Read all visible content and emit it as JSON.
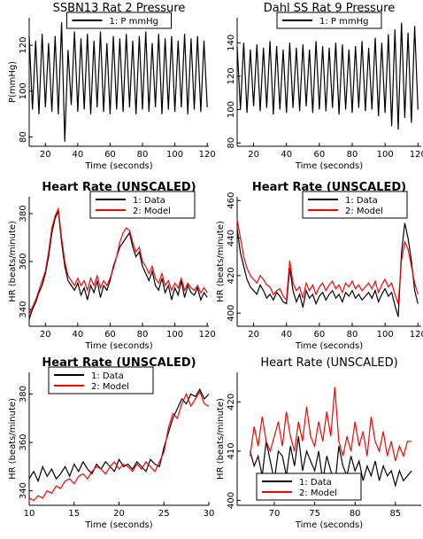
{
  "chart_data": [
    {
      "type": "line",
      "title": "SSBN13 Rat 2 Pressure",
      "xlabel": "Time (seconds)",
      "ylabel": "P(mmHg)",
      "legend": "upper center",
      "xlim": [
        10,
        121
      ],
      "ylim": [
        76,
        132
      ],
      "xticks": [
        20,
        40,
        60,
        80,
        100,
        120
      ],
      "yticks": [
        80,
        100,
        120
      ],
      "x": [
        10,
        12,
        14,
        16,
        18,
        20,
        22,
        24,
        26,
        28,
        30,
        32,
        34,
        36,
        38,
        40,
        42,
        44,
        46,
        48,
        50,
        52,
        54,
        56,
        58,
        60,
        62,
        64,
        66,
        68,
        70,
        72,
        74,
        76,
        78,
        80,
        82,
        84,
        86,
        88,
        90,
        92,
        94,
        96,
        98,
        100,
        102,
        104,
        106,
        108,
        110,
        112,
        114,
        116,
        118,
        120
      ],
      "series": [
        {
          "name": "1: P mmHg",
          "color": "#000000",
          "values": [
            124,
            92,
            122,
            90,
            125,
            93,
            121,
            91,
            124,
            90,
            130,
            78,
            118,
            94,
            126,
            91,
            123,
            92,
            125,
            90,
            122,
            93,
            126,
            91,
            121,
            90,
            124,
            92,
            123,
            91,
            125,
            93,
            122,
            90,
            124,
            92,
            126,
            91,
            121,
            93,
            125,
            90,
            123,
            92,
            124,
            91,
            122,
            93,
            125,
            90,
            123,
            92,
            124,
            91,
            122,
            93
          ]
        }
      ]
    },
    {
      "type": "line",
      "title": "Dahl SS Rat 9 Pressure",
      "xlabel": "Time (seconds)",
      "legend": "upper center",
      "xlim": [
        10,
        122
      ],
      "ylim": [
        78,
        155
      ],
      "xticks": [
        20,
        40,
        60,
        80,
        100,
        120
      ],
      "yticks": [
        80,
        100,
        120,
        140
      ],
      "x": [
        10,
        12,
        14,
        16,
        18,
        20,
        22,
        24,
        26,
        28,
        30,
        32,
        34,
        36,
        38,
        40,
        42,
        44,
        46,
        48,
        50,
        52,
        54,
        56,
        58,
        60,
        62,
        64,
        66,
        68,
        70,
        72,
        74,
        76,
        78,
        80,
        82,
        84,
        86,
        88,
        90,
        92,
        94,
        96,
        98,
        100,
        102,
        104,
        106,
        108,
        110,
        112,
        114,
        116,
        118,
        120
      ],
      "series": [
        {
          "name": "1: P mmHg",
          "color": "#000000",
          "values": [
            138,
            100,
            140,
            98,
            136,
            102,
            139,
            99,
            137,
            101,
            141,
            97,
            138,
            100,
            136,
            98,
            140,
            101,
            137,
            99,
            139,
            102,
            136,
            98,
            141,
            100,
            138,
            99,
            137,
            101,
            140,
            97,
            139,
            100,
            136,
            98,
            138,
            101,
            141,
            99,
            137,
            100,
            143,
            96,
            140,
            98,
            145,
            90,
            148,
            88,
            152,
            95,
            146,
            92,
            150,
            100
          ]
        }
      ]
    },
    {
      "type": "line",
      "title": "Heart Rate (UNSCALED)",
      "title_weight": "bold",
      "ylabel": "HR (beats/minute)",
      "xlabel": "Time (seconds)",
      "legend": "upper right",
      "xlim": [
        10,
        121
      ],
      "ylim": [
        333,
        387
      ],
      "xticks": [
        20,
        40,
        60,
        80,
        100,
        120
      ],
      "yticks": [
        340,
        360,
        380
      ],
      "x": [
        10,
        12,
        14,
        16,
        18,
        20,
        22,
        24,
        26,
        28,
        30,
        32,
        34,
        36,
        38,
        40,
        42,
        44,
        46,
        48,
        50,
        52,
        54,
        56,
        58,
        60,
        62,
        64,
        66,
        68,
        70,
        72,
        74,
        76,
        78,
        80,
        82,
        84,
        86,
        88,
        90,
        92,
        94,
        96,
        98,
        100,
        102,
        104,
        106,
        108,
        110,
        112,
        114,
        116,
        118,
        120
      ],
      "series": [
        {
          "name": "1: Data",
          "color": "#000000",
          "values": [
            336,
            340,
            343,
            347,
            350,
            355,
            362,
            372,
            378,
            381,
            368,
            358,
            352,
            350,
            348,
            351,
            346,
            349,
            344,
            350,
            347,
            352,
            345,
            350,
            348,
            352,
            358,
            362,
            366,
            368,
            370,
            372,
            366,
            362,
            364,
            358,
            355,
            352,
            356,
            350,
            348,
            353,
            347,
            350,
            344,
            349,
            346,
            352,
            345,
            350,
            347,
            346,
            349,
            344,
            347,
            345
          ]
        },
        {
          "name": "2: Model",
          "color": "#ff0000",
          "values": [
            338,
            341,
            344,
            348,
            352,
            356,
            364,
            374,
            379,
            382,
            370,
            360,
            354,
            352,
            350,
            353,
            350,
            352,
            348,
            353,
            350,
            354,
            349,
            352,
            350,
            353,
            357,
            362,
            368,
            372,
            374,
            373,
            368,
            364,
            366,
            360,
            358,
            355,
            358,
            353,
            351,
            355,
            350,
            352,
            348,
            351,
            349,
            353,
            348,
            351,
            349,
            348,
            350,
            347,
            349,
            347
          ]
        }
      ]
    },
    {
      "type": "line",
      "title": "Heart Rate (UNSCALED)",
      "title_weight": "bold",
      "ylabel": "HR (beats/minute)",
      "xlabel": "Time (seconds)",
      "legend": "upper right",
      "xlim": [
        10,
        122
      ],
      "ylim": [
        393,
        462
      ],
      "xticks": [
        20,
        40,
        60,
        80,
        100,
        120
      ],
      "yticks": [
        400,
        420,
        440,
        460
      ],
      "x": [
        10,
        12,
        14,
        16,
        18,
        20,
        22,
        24,
        26,
        28,
        30,
        32,
        34,
        36,
        38,
        40,
        42,
        44,
        46,
        48,
        50,
        52,
        54,
        56,
        58,
        60,
        62,
        64,
        66,
        68,
        70,
        72,
        74,
        76,
        78,
        80,
        82,
        84,
        86,
        88,
        90,
        92,
        94,
        96,
        98,
        100,
        102,
        104,
        106,
        108,
        110,
        112,
        114,
        116,
        118,
        120
      ],
      "series": [
        {
          "name": "1: Data",
          "color": "#000000",
          "values": [
            445,
            432,
            425,
            418,
            414,
            412,
            410,
            415,
            412,
            408,
            410,
            407,
            411,
            409,
            406,
            405,
            424,
            412,
            406,
            410,
            403,
            412,
            408,
            410,
            405,
            409,
            411,
            407,
            410,
            412,
            408,
            410,
            406,
            411,
            409,
            412,
            408,
            410,
            407,
            409,
            411,
            408,
            412,
            406,
            410,
            413,
            409,
            411,
            404,
            398,
            432,
            448,
            440,
            428,
            412,
            405
          ]
        },
        {
          "name": "2: Model",
          "color": "#ff0000",
          "values": [
            450,
            440,
            430,
            424,
            420,
            418,
            416,
            420,
            418,
            415,
            414,
            410,
            412,
            413,
            409,
            407,
            428,
            416,
            412,
            414,
            408,
            416,
            412,
            415,
            410,
            414,
            416,
            412,
            415,
            417,
            413,
            415,
            411,
            416,
            414,
            417,
            413,
            415,
            412,
            414,
            416,
            413,
            417,
            411,
            415,
            418,
            414,
            416,
            410,
            405,
            428,
            438,
            434,
            425,
            416,
            410
          ]
        }
      ]
    },
    {
      "type": "line",
      "title": "Heart Rate (UNSCALED)",
      "title_weight": "bold",
      "ylabel": "HR (beats/minute)",
      "xlabel": "Time (seconds)",
      "legend": "upper left",
      "xlim": [
        10,
        30
      ],
      "ylim": [
        334,
        389
      ],
      "xticks": [
        10,
        15,
        20,
        25,
        30
      ],
      "yticks": [
        340,
        360,
        380
      ],
      "x": [
        10,
        10.5,
        11,
        11.5,
        12,
        12.5,
        13,
        13.5,
        14,
        14.5,
        15,
        15.5,
        16,
        16.5,
        17,
        17.5,
        18,
        18.5,
        19,
        19.5,
        20,
        20.5,
        21,
        21.5,
        22,
        22.5,
        23,
        23.5,
        24,
        24.5,
        25,
        25.5,
        26,
        26.5,
        27,
        27.5,
        28,
        28.5,
        29,
        29.5,
        30
      ],
      "series": [
        {
          "name": "1: Data",
          "color": "#000000",
          "values": [
            345,
            348,
            344,
            350,
            346,
            349,
            345,
            347,
            350,
            346,
            351,
            348,
            352,
            349,
            347,
            351,
            349,
            352,
            350,
            348,
            353,
            350,
            351,
            349,
            352,
            350,
            348,
            353,
            351,
            350,
            358,
            364,
            370,
            374,
            378,
            376,
            380,
            379,
            382,
            378,
            380
          ]
        },
        {
          "name": "2: Model",
          "color": "#ff0000",
          "values": [
            337,
            336,
            338,
            337,
            340,
            339,
            342,
            341,
            344,
            345,
            343,
            346,
            347,
            345,
            348,
            350,
            349,
            347,
            350,
            352,
            349,
            351,
            350,
            348,
            351,
            349,
            352,
            350,
            348,
            352,
            356,
            366,
            372,
            370,
            376,
            380,
            375,
            378,
            381,
            376,
            375
          ]
        }
      ]
    },
    {
      "type": "line",
      "title": "Heart Rate (UNSCALED)",
      "ylabel": "HR (beats/minute)",
      "xlabel": "Time (seconds)",
      "legend": "lower left",
      "xlim": [
        65.4,
        88.2
      ],
      "ylim": [
        399,
        426
      ],
      "xticks": [
        70,
        75,
        80,
        85
      ],
      "yticks": [
        400,
        410,
        420
      ],
      "x": [
        67,
        67.5,
        68,
        68.5,
        69,
        69.5,
        70,
        70.5,
        71,
        71.5,
        72,
        72.5,
        73,
        73.5,
        74,
        74.5,
        75,
        75.5,
        76,
        76.5,
        77,
        77.5,
        78,
        78.5,
        79,
        79.5,
        80,
        80.5,
        81,
        81.5,
        82,
        82.5,
        83,
        83.5,
        84,
        84.5,
        85,
        85.5,
        86,
        86.5,
        87
      ],
      "series": [
        {
          "name": "1: Data",
          "color": "#000000",
          "values": [
            410,
            407,
            409,
            405,
            412,
            408,
            404,
            410,
            409,
            405,
            411,
            407,
            413,
            406,
            410,
            408,
            406,
            410,
            404,
            409,
            406,
            403,
            411,
            407,
            405,
            409,
            406,
            408,
            404,
            407,
            405,
            408,
            404,
            407,
            405,
            406,
            403,
            406,
            404,
            405,
            406
          ]
        },
        {
          "name": "2: Model",
          "color": "#ff0000",
          "values": [
            409,
            415,
            411,
            417,
            412,
            410,
            413,
            416,
            411,
            418,
            413,
            410,
            416,
            412,
            419,
            413,
            411,
            416,
            412,
            418,
            413,
            423,
            412,
            409,
            413,
            410,
            416,
            411,
            414,
            409,
            417,
            412,
            410,
            414,
            409,
            412,
            408,
            411,
            409,
            412,
            412
          ]
        }
      ]
    }
  ]
}
